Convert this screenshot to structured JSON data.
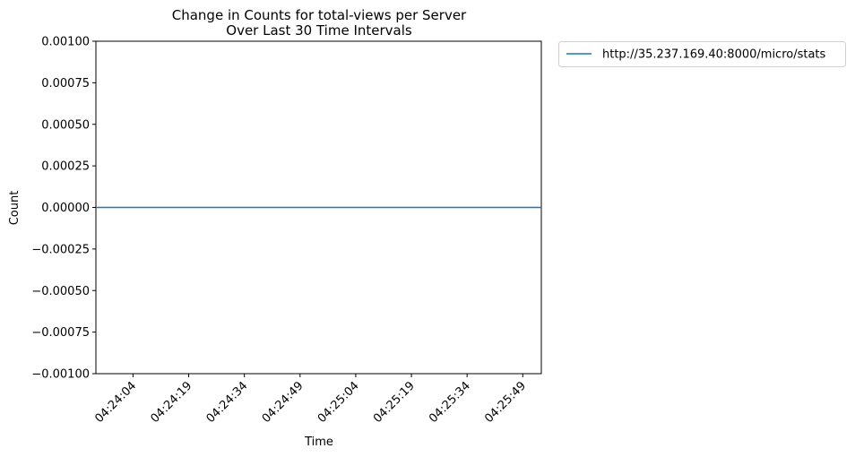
{
  "chart_data": {
    "type": "line",
    "title": "Change in Counts for total-views per Server",
    "subtitle": "Over Last 30 Time Intervals",
    "xlabel": "Time",
    "ylabel": "Count",
    "ylim": [
      -0.001,
      0.001
    ],
    "y_ticks": [
      "0.00100",
      "0.00075",
      "0.00050",
      "0.00025",
      "0.00000",
      "−0.00025",
      "−0.00050",
      "−0.00075",
      "−0.00100"
    ],
    "y_tick_values": [
      0.001,
      0.00075,
      0.0005,
      0.00025,
      0,
      -0.00025,
      -0.0005,
      -0.00075,
      -0.001
    ],
    "x_ticks": [
      "04:24:04",
      "04:24:19",
      "04:24:34",
      "04:24:49",
      "04:25:04",
      "04:25:19",
      "04:25:34",
      "04:25:49"
    ],
    "x_tick_values": [
      "04:24:04",
      "04:24:19",
      "04:24:34",
      "04:24:49",
      "04:25:04",
      "04:25:19",
      "04:25:34",
      "04:25:49"
    ],
    "xlim": [
      "04:23:54",
      "04:25:54"
    ],
    "series": [
      {
        "name": "http://35.237.169.40:8000/micro/stats",
        "color": "#1f77b4",
        "x": [
          "04:23:54",
          "04:25:54"
        ],
        "values": [
          0,
          0
        ]
      }
    ],
    "grid": false,
    "legend": "outside-top-right"
  }
}
